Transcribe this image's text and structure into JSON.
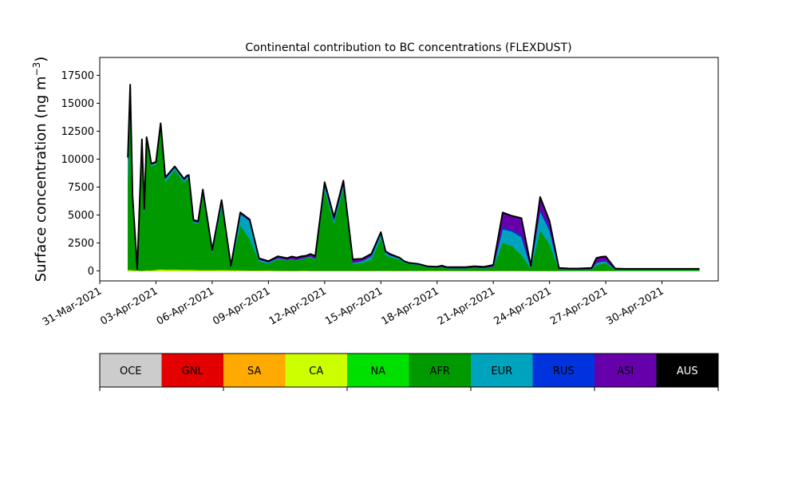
{
  "chart_data": {
    "type": "area",
    "title": "Continental contribution to BC concentrations (FLEXDUST)",
    "ylabel": "Surface concentration (ng m",
    "ylabel_exponent": "−3",
    "ylabel_close": ")",
    "xlabel": "",
    "ylim": [
      -900,
      19100
    ],
    "xlim": [
      "2021-03-31T00:00",
      "2021-05-03T00:00"
    ],
    "stacked": true,
    "grid": false,
    "yticks": [
      0,
      2500,
      5000,
      7500,
      10000,
      12500,
      15000,
      17500
    ],
    "ytick_labels": [
      "0",
      "2500",
      "5000",
      "7500",
      "10000",
      "12500",
      "15000",
      "17500"
    ],
    "xticks": [
      "2021-03-31",
      "2021-04-03",
      "2021-04-06",
      "2021-04-09",
      "2021-04-12",
      "2021-04-15",
      "2021-04-18",
      "2021-04-21",
      "2021-04-24",
      "2021-04-27",
      "2021-04-30"
    ],
    "xtick_labels": [
      "31-Mar-2021",
      "03-Apr-2021",
      "06-Apr-2021",
      "09-Apr-2021",
      "12-Apr-2021",
      "15-Apr-2021",
      "18-Apr-2021",
      "21-Apr-2021",
      "24-Apr-2021",
      "27-Apr-2021",
      "30-Apr-2021"
    ],
    "x": [
      "2021-04-01T12:00",
      "2021-04-01T15:00",
      "2021-04-01T18:00",
      "2021-04-02T00:00",
      "2021-04-02T06:00",
      "2021-04-02T09:00",
      "2021-04-02T12:00",
      "2021-04-02T15:00",
      "2021-04-02T18:00",
      "2021-04-03T00:00",
      "2021-04-03T06:00",
      "2021-04-03T12:00",
      "2021-04-04T00:00",
      "2021-04-04T12:00",
      "2021-04-04T15:00",
      "2021-04-04T18:00",
      "2021-04-05T00:00",
      "2021-04-05T06:00",
      "2021-04-05T12:00",
      "2021-04-06T00:00",
      "2021-04-06T12:00",
      "2021-04-07T00:00",
      "2021-04-07T12:00",
      "2021-04-08T00:00",
      "2021-04-08T12:00",
      "2021-04-09T00:00",
      "2021-04-09T12:00",
      "2021-04-10T00:00",
      "2021-04-10T06:00",
      "2021-04-10T12:00",
      "2021-04-10T18:00",
      "2021-04-11T00:00",
      "2021-04-11T06:00",
      "2021-04-11T12:00",
      "2021-04-12T00:00",
      "2021-04-12T12:00",
      "2021-04-13T00:00",
      "2021-04-13T12:00",
      "2021-04-14T00:00",
      "2021-04-14T12:00",
      "2021-04-15T00:00",
      "2021-04-15T06:00",
      "2021-04-15T12:00",
      "2021-04-16T00:00",
      "2021-04-16T06:00",
      "2021-04-16T12:00",
      "2021-04-17T00:00",
      "2021-04-17T12:00",
      "2021-04-18T00:00",
      "2021-04-18T06:00",
      "2021-04-18T12:00",
      "2021-04-19T00:00",
      "2021-04-19T12:00",
      "2021-04-20T00:00",
      "2021-04-20T12:00",
      "2021-04-21T00:00",
      "2021-04-21T12:00",
      "2021-04-22T00:00",
      "2021-04-22T12:00",
      "2021-04-23T00:00",
      "2021-04-23T12:00",
      "2021-04-24T00:00",
      "2021-04-24T12:00",
      "2021-04-25T00:00",
      "2021-04-25T12:00",
      "2021-04-26T00:00",
      "2021-04-26T06:00",
      "2021-04-26T12:00",
      "2021-04-26T18:00",
      "2021-04-27T00:00",
      "2021-04-27T12:00",
      "2021-04-28T00:00",
      "2021-04-28T12:00",
      "2021-04-29T00:00",
      "2021-04-29T12:00",
      "2021-04-30T00:00",
      "2021-04-30T12:00",
      "2021-05-01T00:00",
      "2021-05-01T12:00",
      "2021-05-02T00:00"
    ],
    "series": [
      {
        "name": "OCE",
        "color": "#cccccc",
        "values": [
          0,
          0,
          0,
          0,
          0,
          0,
          0,
          0,
          0,
          0,
          0,
          0,
          0,
          0,
          0,
          0,
          0,
          0,
          0,
          0,
          0,
          0,
          0,
          0,
          0,
          0,
          0,
          0,
          0,
          0,
          0,
          0,
          0,
          0,
          0,
          0,
          0,
          0,
          0,
          0,
          0,
          0,
          0,
          0,
          0,
          0,
          0,
          0,
          0,
          0,
          0,
          0,
          0,
          0,
          0,
          0,
          0,
          0,
          0,
          0,
          0,
          0,
          0,
          0,
          0,
          0,
          0,
          0,
          0,
          0,
          0,
          0,
          0,
          0,
          0,
          0,
          0,
          0,
          0,
          0
        ]
      },
      {
        "name": "GNL",
        "color": "#e50000",
        "values": [
          0,
          0,
          0,
          0,
          0,
          0,
          0,
          0,
          0,
          0,
          0,
          0,
          0,
          0,
          0,
          0,
          0,
          0,
          0,
          0,
          0,
          0,
          0,
          0,
          0,
          0,
          0,
          0,
          0,
          0,
          0,
          0,
          0,
          0,
          0,
          0,
          0,
          0,
          0,
          0,
          0,
          0,
          0,
          0,
          0,
          0,
          0,
          0,
          0,
          0,
          0,
          0,
          0,
          0,
          0,
          0,
          0,
          0,
          0,
          0,
          0,
          0,
          0,
          0,
          0,
          0,
          0,
          0,
          0,
          0,
          0,
          0,
          0,
          0,
          0,
          0,
          0,
          0,
          0,
          0
        ]
      },
      {
        "name": "SA",
        "color": "#ffaa00",
        "values": [
          0,
          0,
          0,
          0,
          0,
          0,
          0,
          0,
          0,
          0,
          0,
          0,
          0,
          0,
          0,
          0,
          0,
          0,
          0,
          0,
          0,
          0,
          0,
          0,
          0,
          0,
          0,
          0,
          0,
          0,
          0,
          0,
          0,
          0,
          0,
          0,
          0,
          0,
          0,
          0,
          0,
          0,
          0,
          0,
          0,
          0,
          0,
          0,
          0,
          0,
          0,
          0,
          0,
          0,
          0,
          0,
          0,
          0,
          0,
          0,
          0,
          0,
          0,
          0,
          0,
          0,
          0,
          0,
          0,
          0,
          0,
          0,
          0,
          0,
          0,
          0,
          0,
          0,
          0,
          0
        ]
      },
      {
        "name": "CA",
        "color": "#ccff00",
        "values": [
          60,
          80,
          60,
          30,
          10,
          30,
          50,
          40,
          40,
          80,
          120,
          100,
          100,
          80,
          90,
          80,
          80,
          60,
          60,
          60,
          70,
          60,
          50,
          30,
          30,
          40,
          20,
          20,
          10,
          10,
          30,
          30,
          10,
          10,
          10,
          10,
          10,
          10,
          10,
          10,
          20,
          20,
          20,
          10,
          10,
          20,
          20,
          20,
          20,
          20,
          20,
          10,
          10,
          10,
          10,
          10,
          10,
          10,
          10,
          0,
          0,
          0,
          0,
          0,
          0,
          0,
          0,
          0,
          0,
          0,
          0,
          0,
          0,
          0,
          0,
          0,
          0,
          0,
          0,
          0
        ]
      },
      {
        "name": "NA",
        "color": "#00e000",
        "values": [
          20,
          30,
          20,
          10,
          10,
          10,
          20,
          20,
          20,
          30,
          30,
          30,
          40,
          30,
          30,
          30,
          30,
          30,
          20,
          20,
          20,
          20,
          20,
          20,
          20,
          20,
          20,
          10,
          10,
          10,
          10,
          10,
          10,
          10,
          10,
          10,
          10,
          10,
          10,
          10,
          10,
          10,
          10,
          10,
          10,
          10,
          10,
          10,
          10,
          10,
          10,
          10,
          10,
          10,
          10,
          10,
          10,
          10,
          10,
          10,
          10,
          10,
          10,
          10,
          10,
          10,
          10,
          10,
          10,
          10,
          10,
          10,
          10,
          10,
          10,
          10,
          10,
          10,
          10,
          10
        ]
      },
      {
        "name": "AFR",
        "color": "#009a00",
        "values": [
          8000,
          14500,
          6000,
          100,
          11000,
          5200,
          11600,
          10500,
          9300,
          9400,
          12600,
          7800,
          8900,
          7800,
          8000,
          8100,
          4200,
          4100,
          6700,
          1500,
          5600,
          300,
          4000,
          2800,
          800,
          600,
          1000,
          900,
          1000,
          900,
          1000,
          1100,
          1200,
          1000,
          7200,
          4200,
          7400,
          600,
          700,
          1000,
          2900,
          1400,
          1200,
          1000,
          700,
          600,
          500,
          300,
          250,
          300,
          200,
          200,
          200,
          250,
          200,
          300,
          2500,
          2200,
          1400,
          200,
          3600,
          2400,
          100,
          80,
          70,
          80,
          100,
          500,
          600,
          700,
          80,
          80,
          80,
          80,
          80,
          80,
          80,
          80,
          80,
          80
        ]
      },
      {
        "name": "EUR",
        "color": "#00a3bd",
        "values": [
          1900,
          1500,
          500,
          20,
          500,
          200,
          200,
          200,
          150,
          150,
          300,
          300,
          200,
          200,
          250,
          250,
          100,
          100,
          300,
          200,
          500,
          50,
          1000,
          1600,
          150,
          100,
          100,
          50,
          50,
          50,
          50,
          50,
          80,
          50,
          400,
          300,
          300,
          100,
          150,
          300,
          400,
          200,
          150,
          100,
          80,
          50,
          50,
          30,
          30,
          30,
          20,
          20,
          20,
          30,
          30,
          50,
          1200,
          1300,
          1600,
          100,
          1700,
          1200,
          30,
          30,
          30,
          30,
          30,
          200,
          200,
          150,
          30,
          30,
          30,
          30,
          30,
          30,
          30,
          30,
          30,
          30
        ]
      },
      {
        "name": "RUS",
        "color": "#0033dd",
        "values": [
          120,
          400,
          90,
          10,
          200,
          80,
          60,
          50,
          50,
          50,
          100,
          80,
          60,
          60,
          60,
          60,
          50,
          50,
          50,
          30,
          40,
          10,
          60,
          50,
          20,
          10,
          10,
          10,
          10,
          10,
          10,
          10,
          10,
          10,
          60,
          40,
          60,
          10,
          10,
          20,
          30,
          20,
          20,
          10,
          10,
          10,
          10,
          10,
          10,
          10,
          10,
          10,
          10,
          10,
          10,
          10,
          200,
          100,
          200,
          30,
          200,
          150,
          20,
          20,
          20,
          20,
          20,
          40,
          40,
          30,
          10,
          10,
          10,
          10,
          10,
          10,
          10,
          10,
          10,
          10
        ]
      },
      {
        "name": "ASI",
        "color": "#6600aa",
        "values": [
          50,
          150,
          30,
          10,
          50,
          20,
          40,
          40,
          40,
          40,
          60,
          50,
          50,
          60,
          60,
          60,
          100,
          100,
          150,
          50,
          100,
          20,
          100,
          100,
          100,
          100,
          150,
          150,
          200,
          200,
          200,
          150,
          200,
          250,
          250,
          250,
          300,
          300,
          200,
          200,
          100,
          100,
          100,
          50,
          50,
          30,
          30,
          30,
          50,
          100,
          80,
          80,
          80,
          100,
          100,
          150,
          1300,
          1300,
          1500,
          100,
          1100,
          700,
          100,
          80,
          80,
          100,
          100,
          400,
          400,
          400,
          80,
          50,
          50,
          50,
          50,
          50,
          50,
          50,
          50,
          50
        ]
      },
      {
        "name": "AUS",
        "color": "#000000",
        "values": [
          0,
          0,
          0,
          0,
          0,
          0,
          0,
          0,
          0,
          0,
          0,
          0,
          0,
          0,
          0,
          0,
          0,
          0,
          0,
          0,
          0,
          0,
          0,
          0,
          0,
          0,
          0,
          0,
          0,
          0,
          0,
          0,
          0,
          0,
          0,
          0,
          0,
          0,
          0,
          0,
          0,
          0,
          0,
          0,
          0,
          0,
          0,
          0,
          0,
          0,
          0,
          0,
          0,
          0,
          0,
          0,
          0,
          0,
          0,
          0,
          0,
          0,
          0,
          0,
          0,
          0,
          0,
          0,
          0,
          0,
          0,
          0,
          0,
          0,
          0,
          0,
          0,
          0,
          0,
          0
        ]
      }
    ],
    "legend": {
      "placement": "colorbar-below",
      "labels": [
        "OCE",
        "GNL",
        "SA",
        "CA",
        "NA",
        "AFR",
        "EUR",
        "RUS",
        "ASI",
        "AUS"
      ],
      "label_colors": [
        "#000000",
        "#000000",
        "#000000",
        "#000000",
        "#000000",
        "#000000",
        "#000000",
        "#000000",
        "#000000",
        "#ffffff"
      ]
    }
  }
}
